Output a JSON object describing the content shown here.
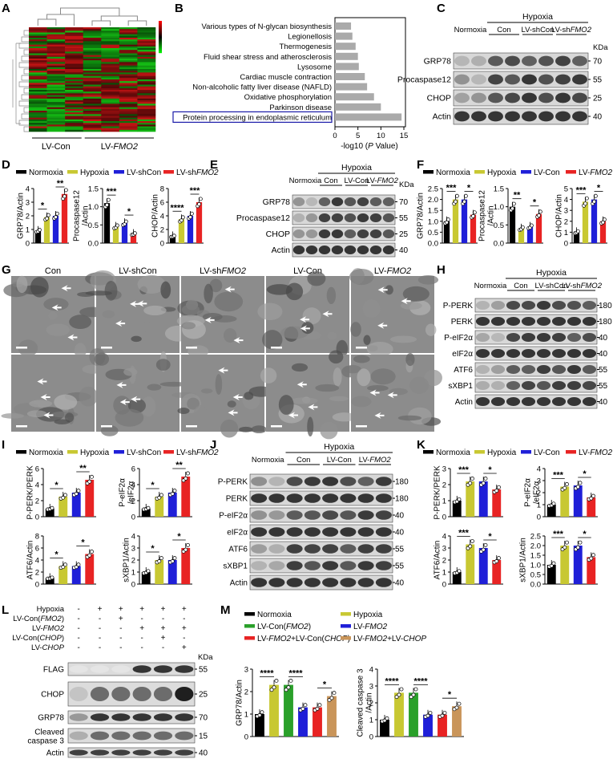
{
  "labels": {
    "A": "A",
    "B": "B",
    "C": "C",
    "D": "D",
    "E": "E",
    "F": "F",
    "G": "G",
    "H": "H",
    "I": "I",
    "J": "J",
    "K": "K",
    "L": "L",
    "M": "M"
  },
  "colors": {
    "normoxia": "#000000",
    "hypoxia": "#c8c832",
    "shcon": "#1f1fd8",
    "shfmo2": "#e82323",
    "green": "#2aa02a",
    "brown": "#c9955a",
    "bar_b": "#aaaaaa"
  },
  "heatmap": {
    "groups": [
      "LV-Con",
      "LV-FMO2"
    ],
    "scale": [
      "",
      "",
      ""
    ]
  },
  "panelB": {
    "pathways": [
      "Various types of N-glycan biosynthesis",
      "Legionellosis",
      "Thermogenesis",
      "Fluid shear stress and atherosclerosis",
      "Lysosome",
      "Cardiac muscle contraction",
      "Non-alcoholic fatty liver disease (NAFLD)",
      "Oxidative phosphorylation",
      "Parkinson disease",
      "Protein processing in endoplasmic reticulum"
    ],
    "xlabel": "-log10 (P Value)",
    "ticks": [
      "0",
      "5",
      "10",
      "15"
    ],
    "chart_data": {
      "type": "bar",
      "orientation": "horizontal",
      "categories": [
        "Various types of N-glycan biosynthesis",
        "Legionellosis",
        "Thermogenesis",
        "Fluid shear stress and atherosclerosis",
        "Lysosome",
        "Cardiac muscle contraction",
        "Non-alcoholic fatty liver disease (NAFLD)",
        "Oxidative phosphorylation",
        "Parkinson disease",
        "Protein processing in endoplasmic reticulum"
      ],
      "values": [
        3.5,
        3.8,
        4.5,
        5.0,
        5.2,
        6.5,
        7.0,
        8.5,
        10.0,
        14.5
      ],
      "xlim": [
        0,
        15
      ],
      "xlabel": "-log10 (P Value)"
    }
  },
  "blotC": {
    "hypoxia": "Hypoxia",
    "normoxia": "Normoxia",
    "groups": [
      "Con",
      "LV-shCon",
      "LV-shFMO2"
    ],
    "kda": "KDa",
    "rows": [
      {
        "name": "GRP78",
        "mw": "70"
      },
      {
        "name": "Procaspase12",
        "mw": "55"
      },
      {
        "name": "CHOP",
        "mw": "25"
      },
      {
        "name": "Actin",
        "mw": "40"
      }
    ]
  },
  "blotE": {
    "hypoxia": "Hypoxia",
    "normoxia": "Normoxia",
    "groups": [
      "Con",
      "LV-Con",
      "LV-FMO2"
    ],
    "kda": "KDa",
    "rows": [
      {
        "name": "GRP78",
        "mw": "70"
      },
      {
        "name": "Procaspase12",
        "mw": "55"
      },
      {
        "name": "CHOP",
        "mw": "25"
      },
      {
        "name": "Actin",
        "mw": "40"
      }
    ]
  },
  "blotH": {
    "hypoxia": "Hypoxia",
    "normoxia": "Normoxia",
    "groups": [
      "Con",
      "LV-shCon",
      "LV-shFMO2"
    ],
    "rows": [
      {
        "name": "P-PERK",
        "mw": "180"
      },
      {
        "name": "PERK",
        "mw": "180"
      },
      {
        "name": "P-eIF2α",
        "mw": "40"
      },
      {
        "name": "eIF2α",
        "mw": "40"
      },
      {
        "name": "ATF6",
        "mw": "55"
      },
      {
        "name": "sXBP1",
        "mw": "55"
      },
      {
        "name": "Actin",
        "mw": "40"
      }
    ]
  },
  "blotJ": {
    "hypoxia": "Hypoxia",
    "normoxia": "Normoxia",
    "groups": [
      "Con",
      "LV-Con",
      "LV-FMO2"
    ],
    "rows": [
      {
        "name": "P-PERK",
        "mw": "180"
      },
      {
        "name": "PERK",
        "mw": "180"
      },
      {
        "name": "P-eIF2α",
        "mw": "40"
      },
      {
        "name": "eIF2α",
        "mw": "40"
      },
      {
        "name": "ATF6",
        "mw": "55"
      },
      {
        "name": "sXBP1",
        "mw": "55"
      },
      {
        "name": "Actin",
        "mw": "40"
      }
    ]
  },
  "blotL": {
    "kda": "KDa",
    "conditions": [
      {
        "name": "Hypoxia",
        "signs": [
          "-",
          "+",
          "+",
          "+",
          "+",
          "+"
        ]
      },
      {
        "name": "LV-Con(FMO2)",
        "signs": [
          "-",
          "-",
          "+",
          "-",
          "-",
          "-"
        ]
      },
      {
        "name": "LV-FMO2",
        "signs": [
          "-",
          "-",
          "-",
          "+",
          "+",
          "+"
        ]
      },
      {
        "name": "LV-Con(CHOP)",
        "signs": [
          "-",
          "-",
          "-",
          "-",
          "+",
          "-"
        ]
      },
      {
        "name": "LV-CHOP",
        "signs": [
          "-",
          "-",
          "-",
          "-",
          "-",
          "+"
        ]
      }
    ],
    "rows": [
      {
        "name": "FLAG",
        "mw": "55"
      },
      {
        "name": "CHOP",
        "mw": "25"
      },
      {
        "name": "GRP78",
        "mw": "70"
      },
      {
        "name": "Cleaved caspase 3",
        "mw": "15"
      },
      {
        "name": "Actin",
        "mw": "40"
      }
    ]
  },
  "panelG": {
    "cols": [
      "Con",
      "LV-shCon",
      "LV-shFMO2",
      "LV-Con",
      "LV-FMO2"
    ]
  },
  "legends": {
    "D": [
      "Normoxia",
      "Hypoxia",
      "LV-shCon",
      "LV-shFMO2"
    ],
    "F": [
      "Normoxia",
      "Hypoxia",
      "LV-Con",
      "LV-FMO2"
    ],
    "I": [
      "Normoxia",
      "Hypoxia",
      "LV-shCon",
      "LV-shFMO2"
    ],
    "K": [
      "Normoxia",
      "Hypoxia",
      "LV-Con",
      "LV-FMO2"
    ],
    "M": [
      "Normoxia",
      "Hypoxia",
      "LV-Con(FMO2)",
      "LV-FMO2",
      "LV-FMO2+LV-Con(CHOP)",
      "LV-FMO2+LV-CHOP"
    ]
  },
  "chart_data": [
    {
      "id": "D1",
      "type": "bar",
      "ylabel": "GRP78/Actin",
      "ylim": [
        0,
        4
      ],
      "ticks": [
        "0",
        "1",
        "2",
        "3",
        "4"
      ],
      "categories": [
        "Normoxia",
        "Hypoxia",
        "LV-shCon",
        "LV-shFMO2"
      ],
      "values": [
        0.9,
        1.9,
        2.0,
        3.6
      ],
      "sig": [
        {
          "a": 0,
          "b": 1,
          "t": "*"
        },
        {
          "a": 2,
          "b": 3,
          "t": "**"
        }
      ]
    },
    {
      "id": "D2",
      "type": "bar",
      "ylabel": "Procaspase12/Actin",
      "ylim": [
        0,
        1.5
      ],
      "ticks": [
        "0.0",
        "0.5",
        "1.0",
        "1.5"
      ],
      "categories": [
        "Normoxia",
        "Hypoxia",
        "LV-shCon",
        "LV-shFMO2"
      ],
      "values": [
        1.1,
        0.45,
        0.55,
        0.25
      ],
      "sig": [
        {
          "a": 0,
          "b": 1,
          "t": "***"
        },
        {
          "a": 2,
          "b": 3,
          "t": "*"
        }
      ]
    },
    {
      "id": "D3",
      "type": "bar",
      "ylabel": "CHOP/Actin",
      "ylim": [
        0,
        8
      ],
      "ticks": [
        "0",
        "2",
        "4",
        "6",
        "8"
      ],
      "categories": [
        "Normoxia",
        "Hypoxia",
        "LV-shCon",
        "LV-shFMO2"
      ],
      "values": [
        1.0,
        3.5,
        4.0,
        6.0
      ],
      "sig": [
        {
          "a": 0,
          "b": 1,
          "t": "****"
        },
        {
          "a": 2,
          "b": 3,
          "t": "***"
        }
      ]
    },
    {
      "id": "F1",
      "type": "bar",
      "ylabel": "GRP78/Actin",
      "ylim": [
        0,
        2.5
      ],
      "ticks": [
        "0.0",
        "0.5",
        "1.0",
        "1.5",
        "2.0",
        "2.5"
      ],
      "categories": [
        "Normoxia",
        "Hypoxia",
        "LV-Con",
        "LV-FMO2"
      ],
      "values": [
        1.0,
        2.0,
        2.0,
        1.3
      ],
      "sig": [
        {
          "a": 0,
          "b": 1,
          "t": "***"
        },
        {
          "a": 2,
          "b": 3,
          "t": "*"
        }
      ]
    },
    {
      "id": "F2",
      "type": "bar",
      "ylabel": "Procaspase12/Actin",
      "ylim": [
        0,
        1.5
      ],
      "ticks": [
        "0.0",
        "0.5",
        "1.0",
        "1.5"
      ],
      "categories": [
        "Normoxia",
        "Hypoxia",
        "LV-Con",
        "LV-FMO2"
      ],
      "values": [
        1.0,
        0.4,
        0.45,
        0.8
      ],
      "sig": [
        {
          "a": 0,
          "b": 1,
          "t": "**"
        },
        {
          "a": 2,
          "b": 3,
          "t": "*"
        }
      ]
    },
    {
      "id": "F3",
      "type": "bar",
      "ylabel": "CHOP/Actin",
      "ylim": [
        0,
        5
      ],
      "ticks": [
        "0",
        "1",
        "2",
        "3",
        "4",
        "5"
      ],
      "categories": [
        "Normoxia",
        "Hypoxia",
        "LV-Con",
        "LV-FMO2"
      ],
      "values": [
        1.0,
        3.8,
        4.0,
        2.0
      ],
      "sig": [
        {
          "a": 0,
          "b": 1,
          "t": "***"
        },
        {
          "a": 2,
          "b": 3,
          "t": "*"
        }
      ]
    },
    {
      "id": "I1",
      "type": "bar",
      "ylabel": "P-PERK/PERK",
      "ylim": [
        0,
        6
      ],
      "ticks": [
        "0",
        "2",
        "4",
        "6"
      ],
      "categories": [
        "Normoxia",
        "Hypoxia",
        "LV-shCon",
        "LV-shFMO2"
      ],
      "values": [
        1.0,
        2.5,
        3.0,
        4.6
      ],
      "sig": [
        {
          "a": 0,
          "b": 1,
          "t": "*"
        },
        {
          "a": 2,
          "b": 3,
          "t": "**"
        }
      ]
    },
    {
      "id": "I2",
      "type": "bar",
      "ylabel": "P-eIF2α/eIF2α",
      "ylim": [
        0,
        6
      ],
      "ticks": [
        "0",
        "2",
        "4",
        "6"
      ],
      "categories": [
        "Normoxia",
        "Hypoxia",
        "LV-shCon",
        "LV-shFMO2"
      ],
      "values": [
        1.0,
        2.5,
        3.0,
        5.0
      ],
      "sig": [
        {
          "a": 0,
          "b": 1,
          "t": "*"
        },
        {
          "a": 2,
          "b": 3,
          "t": "**"
        }
      ]
    },
    {
      "id": "I3",
      "type": "bar",
      "ylabel": "ATF6/Actin",
      "ylim": [
        0,
        8
      ],
      "ticks": [
        "0",
        "2",
        "4",
        "6",
        "8"
      ],
      "categories": [
        "Normoxia",
        "Hypoxia",
        "LV-shCon",
        "LV-shFMO2"
      ],
      "values": [
        1.0,
        3.0,
        3.0,
        5.0
      ],
      "sig": [
        {
          "a": 0,
          "b": 1,
          "t": "*"
        },
        {
          "a": 2,
          "b": 3,
          "t": "*"
        }
      ]
    },
    {
      "id": "I4",
      "type": "bar",
      "ylabel": "sXBP1/Actin",
      "ylim": [
        0,
        4
      ],
      "ticks": [
        "0",
        "1",
        "2",
        "3",
        "4"
      ],
      "categories": [
        "Normoxia",
        "Hypoxia",
        "LV-shCon",
        "LV-shFMO2"
      ],
      "values": [
        1.0,
        2.0,
        2.0,
        3.0
      ],
      "sig": [
        {
          "a": 0,
          "b": 1,
          "t": "*"
        },
        {
          "a": 2,
          "b": 3,
          "t": "*"
        }
      ]
    },
    {
      "id": "K1",
      "type": "bar",
      "ylabel": "P-PERK/PERK",
      "ylim": [
        0,
        3
      ],
      "ticks": [
        "0",
        "1",
        "2",
        "3"
      ],
      "categories": [
        "Normoxia",
        "Hypoxia",
        "LV-Con",
        "LV-FMO2"
      ],
      "values": [
        1.0,
        2.2,
        2.2,
        1.7
      ],
      "sig": [
        {
          "a": 0,
          "b": 1,
          "t": "***"
        },
        {
          "a": 2,
          "b": 3,
          "t": "*"
        }
      ]
    },
    {
      "id": "K2",
      "type": "bar",
      "ylabel": "P-eIF2α/eIF2α",
      "ylim": [
        0,
        4
      ],
      "ticks": [
        "0",
        "1",
        "2",
        "3",
        "4"
      ],
      "categories": [
        "Normoxia",
        "Hypoxia",
        "LV-Con",
        "LV-FMO2"
      ],
      "values": [
        1.0,
        2.5,
        2.6,
        1.6
      ],
      "sig": [
        {
          "a": 0,
          "b": 1,
          "t": "***"
        },
        {
          "a": 2,
          "b": 3,
          "t": "*"
        }
      ]
    },
    {
      "id": "K3",
      "type": "bar",
      "ylabel": "ATF6/Actin",
      "ylim": [
        0,
        4
      ],
      "ticks": [
        "0",
        "1",
        "2",
        "3",
        "4"
      ],
      "categories": [
        "Normoxia",
        "Hypoxia",
        "LV-Con",
        "LV-FMO2"
      ],
      "values": [
        1.0,
        3.3,
        3.0,
        2.0
      ],
      "sig": [
        {
          "a": 0,
          "b": 1,
          "t": "***"
        },
        {
          "a": 2,
          "b": 3,
          "t": "*"
        }
      ]
    },
    {
      "id": "K4",
      "type": "bar",
      "ylabel": "sXBP1/Actin",
      "ylim": [
        0,
        2.5
      ],
      "ticks": [
        "0.0",
        "0.5",
        "1.0",
        "1.5",
        "2.0",
        "2.5"
      ],
      "categories": [
        "Normoxia",
        "Hypoxia",
        "LV-Con",
        "LV-FMO2"
      ],
      "values": [
        1.0,
        2.0,
        2.0,
        1.4
      ],
      "sig": [
        {
          "a": 0,
          "b": 1,
          "t": "***"
        },
        {
          "a": 2,
          "b": 3,
          "t": "*"
        }
      ]
    },
    {
      "id": "M1",
      "type": "bar",
      "ylabel": "GRP78/Actin",
      "ylim": [
        0,
        3
      ],
      "ticks": [
        "0",
        "1",
        "2",
        "3"
      ],
      "categories": [
        "Normoxia",
        "Hypoxia",
        "LV-Con(FMO2)",
        "LV-FMO2",
        "LV-FMO2+LV-Con(CHOP)",
        "LV-FMO2+LV-CHOP"
      ],
      "values": [
        1.0,
        2.3,
        2.3,
        1.3,
        1.3,
        1.8
      ],
      "sig": [
        {
          "a": 0,
          "b": 1,
          "t": "****"
        },
        {
          "a": 2,
          "b": 3,
          "t": "****"
        },
        {
          "a": 4,
          "b": 5,
          "t": "*"
        }
      ]
    },
    {
      "id": "M2",
      "type": "bar",
      "ylabel": "Cleaved caspase 3/Actin",
      "ylim": [
        0,
        4
      ],
      "ticks": [
        "0",
        "1",
        "2",
        "3",
        "4"
      ],
      "categories": [
        "Normoxia",
        "Hypoxia",
        "LV-Con(FMO2)",
        "LV-FMO2",
        "LV-FMO2+LV-Con(CHOP)",
        "LV-FMO2+LV-CHOP"
      ],
      "values": [
        1.0,
        2.6,
        2.6,
        1.3,
        1.3,
        1.8
      ],
      "sig": [
        {
          "a": 0,
          "b": 1,
          "t": "****"
        },
        {
          "a": 2,
          "b": 3,
          "t": "****"
        },
        {
          "a": 4,
          "b": 5,
          "t": "*"
        }
      ]
    }
  ]
}
